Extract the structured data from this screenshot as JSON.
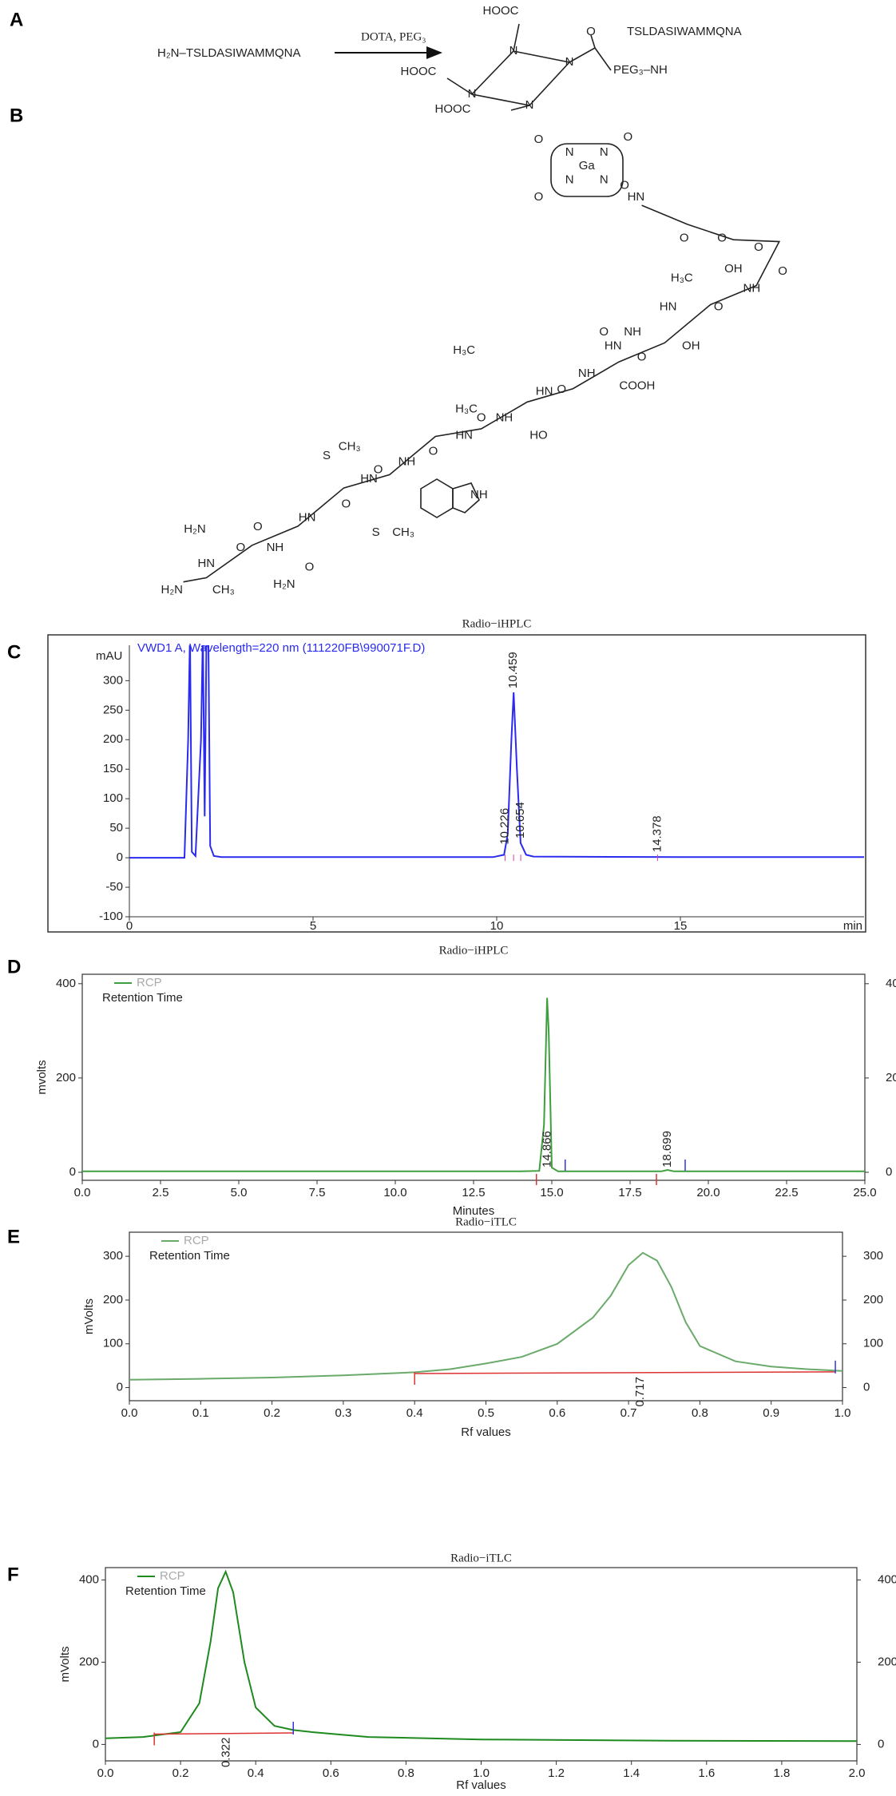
{
  "panel_labels": [
    "A",
    "B",
    "C",
    "D",
    "E",
    "F"
  ],
  "scheme": {
    "reactant": "H₂N–TSLDASIWAMMQNA",
    "reagents": "DOTA, PEG₃",
    "product_labels": [
      "HOOC",
      "N",
      "N",
      "N",
      "N",
      "HOOC",
      "HOOC",
      "O",
      "PEG₃–NH",
      "TSLDASIWAMMQNA"
    ]
  },
  "structure": {
    "labels": [
      "O",
      "O",
      "N",
      "N",
      "Ga",
      "N",
      "N",
      "O",
      "O",
      "HN",
      "O",
      "O",
      "O",
      "OH",
      "O",
      "H₃C",
      "NH",
      "O",
      "HN",
      "NH",
      "OH",
      "O",
      "HN",
      "O",
      "NH",
      "COOH",
      "O",
      "HN",
      "H₃C",
      "H₃C",
      "NH",
      "HO",
      "O",
      "HN",
      "NH",
      "O",
      "NH",
      "O",
      "HN",
      "S",
      "CH₃",
      "O",
      "HN",
      "O",
      "H₂N",
      "NH",
      "O",
      "HN",
      "O",
      "H₂N",
      "H₂N",
      "CH₃",
      "S",
      "CH₃"
    ]
  },
  "chart_data": [
    {
      "type": "line",
      "title": "Radio−iHPLC",
      "header": "VWD1 A, Wavelength=220 nm (111220FB\\990071F.D)",
      "ylabel": "mAU",
      "x_unit": "min",
      "x": [
        0,
        1.5,
        1.6,
        1.65,
        1.7,
        1.8,
        1.95,
        2.0,
        2.05,
        2.1,
        2.15,
        2.2,
        2.3,
        2.5,
        5,
        9.9,
        10.2,
        10.3,
        10.4,
        10.46,
        10.55,
        10.65,
        10.8,
        11,
        15,
        20
      ],
      "series": [
        {
          "name": "VWD1 A",
          "color": "#2b2bef",
          "values": [
            0,
            0,
            200,
            380,
            10,
            3,
            200,
            380,
            70,
            380,
            380,
            20,
            3,
            1,
            1,
            1,
            5,
            40,
            200,
            280,
            150,
            25,
            5,
            2,
            1,
            1
          ]
        }
      ],
      "peaks": [
        10.226,
        10.459,
        10.654,
        14.378
      ],
      "xlim": [
        0,
        20
      ],
      "xticks": [
        0,
        5,
        10,
        15
      ],
      "ylim": [
        -100,
        360
      ],
      "yticks": [
        -100,
        -50,
        0,
        50,
        100,
        150,
        200,
        250,
        300
      ]
    },
    {
      "type": "line",
      "title": "Radio−iHPLC",
      "ylabel": "mvolts",
      "xlabel": "Minutes",
      "legend_subtitle": "Retention Time",
      "x": [
        0,
        14,
        14.6,
        14.75,
        14.85,
        14.9,
        15.0,
        15.2,
        18.5,
        18.7,
        18.9,
        25
      ],
      "series": [
        {
          "name": "RCP",
          "color": "#3f9f3f",
          "values": [
            2,
            2,
            3,
            100,
            370,
            300,
            10,
            2,
            2,
            5,
            2,
            2
          ]
        }
      ],
      "peaks": [
        14.866,
        18.699
      ],
      "xlim": [
        0,
        25
      ],
      "xticks": [
        {
          "value": 0,
          "label": "0.0"
        },
        2.5,
        {
          "value": 5,
          "label": "5.0"
        },
        7.5,
        {
          "value": 10,
          "label": "10.0"
        },
        12.5,
        {
          "value": 15,
          "label": "15.0"
        },
        17.5,
        {
          "value": 20,
          "label": "20.0"
        },
        22.5,
        {
          "value": 25,
          "label": "25.0"
        }
      ],
      "ylim": [
        -17,
        420
      ],
      "yticks": [
        0,
        200,
        400
      ],
      "y2lim": [
        -17,
        420
      ],
      "y2ticks": [
        0,
        200,
        400
      ]
    },
    {
      "type": "line",
      "title": "Radio−iTLC",
      "ylabel": "mVolts",
      "xlabel": "Rf values",
      "legend_subtitle": "Retention Time",
      "x": [
        0,
        0.1,
        0.2,
        0.3,
        0.4,
        0.45,
        0.5,
        0.55,
        0.6,
        0.65,
        0.675,
        0.7,
        0.72,
        0.74,
        0.76,
        0.78,
        0.8,
        0.85,
        0.9,
        0.95,
        1.0
      ],
      "series": [
        {
          "name": "RCP",
          "color": "#6aaa6a",
          "values": [
            18,
            20,
            23,
            28,
            35,
            42,
            55,
            70,
            100,
            160,
            210,
            280,
            308,
            290,
            230,
            150,
            95,
            60,
            48,
            42,
            38
          ]
        }
      ],
      "peaks": [
        0.717
      ],
      "baseline": {
        "x": [
          0.4,
          0.99
        ],
        "values": [
          32,
          36
        ]
      },
      "xlim": [
        0,
        1
      ],
      "xticks": [
        {
          "value": 0,
          "label": "0.0"
        },
        0.1,
        0.2,
        0.3,
        0.4,
        0.5,
        0.6,
        0.7,
        0.8,
        0.9,
        {
          "value": 1,
          "label": "1.0"
        }
      ],
      "ylim": [
        -30,
        355
      ],
      "yticks": [
        0,
        100,
        200,
        300
      ],
      "y2lim": [
        -30,
        355
      ],
      "y2ticks": [
        0,
        100,
        200,
        300
      ]
    },
    {
      "type": "line",
      "title": "Radio−iTLC",
      "ylabel": "mVolts",
      "xlabel": "Rf values",
      "legend_subtitle": "Retention Time",
      "x": [
        0,
        0.1,
        0.2,
        0.25,
        0.28,
        0.3,
        0.32,
        0.34,
        0.37,
        0.4,
        0.45,
        0.5,
        0.55,
        0.7,
        1.0,
        1.5,
        2.0
      ],
      "series": [
        {
          "name": "RCP",
          "color": "#1f8a1f",
          "values": [
            15,
            18,
            30,
            100,
            250,
            380,
            420,
            370,
            200,
            90,
            45,
            35,
            30,
            18,
            12,
            9,
            8
          ]
        }
      ],
      "peaks": [
        0.322
      ],
      "baseline": {
        "x": [
          0.13,
          0.5
        ],
        "values": [
          25,
          28
        ]
      },
      "xlim": [
        0,
        2
      ],
      "xticks": [
        {
          "value": 0,
          "label": "0.0"
        },
        0.2,
        0.4,
        0.6,
        0.8,
        {
          "value": 1,
          "label": "1.0"
        },
        1.2,
        1.4,
        1.6,
        1.8,
        {
          "value": 2,
          "label": "2.0"
        }
      ],
      "ylim": [
        -40,
        430
      ],
      "yticks": [
        0,
        200,
        400
      ],
      "y2lim": [
        -40,
        430
      ],
      "y2ticks": [
        0,
        200,
        400
      ]
    }
  ]
}
